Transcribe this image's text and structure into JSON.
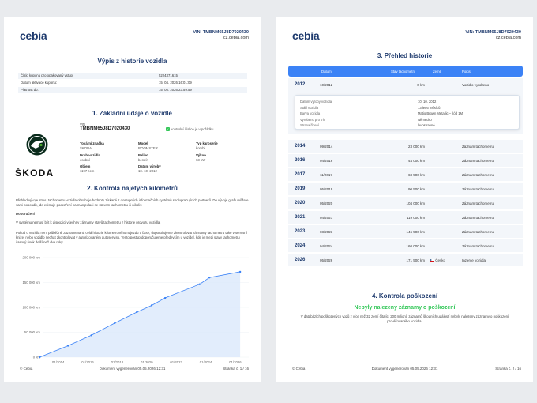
{
  "brand": "cebia",
  "header": {
    "vin": "VIN: TMBNM65J8D7020430",
    "site": "cz.cebia.com"
  },
  "page1": {
    "title": "Výpis z historie vozidla",
    "info_rows": [
      {
        "label": "Číslo kuponu pro opakovaný vstup:",
        "value": "5224371615"
      },
      {
        "label": "Datum aktivace kuponu:",
        "value": "15. 04. 2026 16:01:09"
      },
      {
        "label": "Platnost do:",
        "value": "15. 05. 2026 23:59:59"
      }
    ],
    "section1_title": "1. Základní údaje o vozidle",
    "skoda_text": "ŠKODA",
    "vin_label": "VIN",
    "vin_value": "TMBNM65J8D7020430",
    "vin_check": "kontrolní číslice je v pořádku",
    "fields": [
      {
        "label": "Tovární značka",
        "value": "ŠKODA"
      },
      {
        "label": "Model",
        "value": "ROOMSTER"
      },
      {
        "label": "Typ karoserie",
        "value": "kombi"
      },
      {
        "label": "Druh vozidla",
        "value": "osobní"
      },
      {
        "label": "Palivo",
        "value": "benzín"
      },
      {
        "label": "Výkon",
        "value": "63 kW"
      },
      {
        "label": "Objem",
        "value": "1197 ccm"
      },
      {
        "label": "Datum výroby",
        "value": "10. 10. 2012"
      }
    ],
    "section2_title": "2. Kontrola najetých kilometrů",
    "para1": "Přehled vývoje stavu tachometru vozidla obsahuje hodnoty získané z dostupných informačních systémů spolupracujících partnerů. Do vývoje grafu můžete sami posoudit, jde existuje podezření na manipulaci se stavem tachometru či nikoliv.",
    "doporuceni": "Doporučení",
    "para2": "V systému nemusí být k dispozici všechny záznamy stavů tachometru z historie provozu vozidla.",
    "para3": "Pokud u vozidla není průběžně zaznamenaná celá historie kilometrového nájezdu v čase, doporučujeme zkontrolovat záznamy tachometru také v servisní knize, nebo vozidlo nechat zkontrolovat v autorizovaném autoservisu. Tento postup doporučujeme především u vozidel, kde je mezi stavy tachometru časový úsek delší než dva roky.",
    "footer_left": "© Cebia",
    "footer_center": "Dokument vygenerován 05.05.2026 12:31",
    "footer_right": "Stránka č. 1 / 16"
  },
  "chart_data": {
    "type": "area",
    "title": "",
    "xlabel": "",
    "ylabel": "",
    "y_ticks": [
      "0 km",
      "50 000 km",
      "100 000 km",
      "150 000 km",
      "200 000 km"
    ],
    "ylim": [
      0,
      200000
    ],
    "x_ticks": [
      "01/2014",
      "01/2016",
      "01/2018",
      "01/2020",
      "01/2022",
      "01/2024",
      "01/2026"
    ],
    "xlim": [
      "2013-01",
      "2026-12"
    ],
    "points": [
      {
        "x": "2012-10",
        "y": 0
      },
      {
        "x": "2014-09",
        "y": 23000
      },
      {
        "x": "2016-04",
        "y": 44000
      },
      {
        "x": "2017-11",
        "y": 68500
      },
      {
        "x": "2019-05",
        "y": 90500
      },
      {
        "x": "2020-05",
        "y": 104000
      },
      {
        "x": "2021-04",
        "y": 119000
      },
      {
        "x": "2023-08",
        "y": 146500
      },
      {
        "x": "2024-04",
        "y": 160000
      },
      {
        "x": "2026-05",
        "y": 171500
      }
    ],
    "colors": {
      "line": "#3b82f6",
      "fill": "#dbe9fb"
    }
  },
  "page2": {
    "section3_title": "3. Přehled historie",
    "columns": {
      "date": "Datum",
      "km": "Stav tachometru",
      "country": "Země",
      "desc": "Popis"
    },
    "first_row": {
      "year": "2012",
      "date": "10/2012",
      "km": "0 km",
      "country": "",
      "desc": "Vozidlo vyrobeno"
    },
    "detail": [
      {
        "label": "Datum výroby vozidla",
        "value": "10. 10. 2012"
      },
      {
        "label": "Stáří vozidla",
        "value": "13 let 6 měsíců"
      },
      {
        "label": "Barva vozidla",
        "value": "Matio Brown Metallic – kód 1M"
      },
      {
        "label": "Vyrobeno pro trh",
        "value": "Německo"
      },
      {
        "label": "Strana řízení",
        "value": "levostranné"
      }
    ],
    "rows": [
      {
        "year": "2014",
        "date": "09/2014",
        "km": "23 000 km",
        "country": "",
        "desc": "Záznam tachometru"
      },
      {
        "year": "2016",
        "date": "04/2016",
        "km": "44 000 km",
        "country": "",
        "desc": "Záznam tachometru"
      },
      {
        "year": "2017",
        "date": "11/2017",
        "km": "68 500 km",
        "country": "",
        "desc": "Záznam tachometru"
      },
      {
        "year": "2019",
        "date": "05/2019",
        "km": "90 500 km",
        "country": "",
        "desc": "Záznam tachometru"
      },
      {
        "year": "2020",
        "date": "05/2020",
        "km": "104 000 km",
        "country": "",
        "desc": "Záznam tachometru"
      },
      {
        "year": "2021",
        "date": "04/2021",
        "km": "119 000 km",
        "country": "",
        "desc": "Záznam tachometru"
      },
      {
        "year": "2023",
        "date": "08/2023",
        "km": "146 500 km",
        "country": "",
        "desc": "Záznam tachometru"
      },
      {
        "year": "2024",
        "date": "04/2024",
        "km": "160 000 km",
        "country": "",
        "desc": "Záznam tachometru"
      },
      {
        "year": "2026",
        "date": "05/2026",
        "km": "171 500 km",
        "country": "Česko",
        "desc": "Inzerce vozidla"
      }
    ],
    "section4_title": "4. Kontrola poškození",
    "damage_headline": "Nebyly nalezeny záznamy o poškození",
    "damage_text": "V databázích poškozených vozů z více než 32 zemí čítající 200 milionů záznamů škodních událostí nebyly nalezeny záznamy o poškození prověřovaného vozidla.",
    "footer_left": "© Cebia",
    "footer_center": "Dokument vygenerován 05.05.2026 12:31",
    "footer_right": "Stránka č. 2 / 16"
  }
}
